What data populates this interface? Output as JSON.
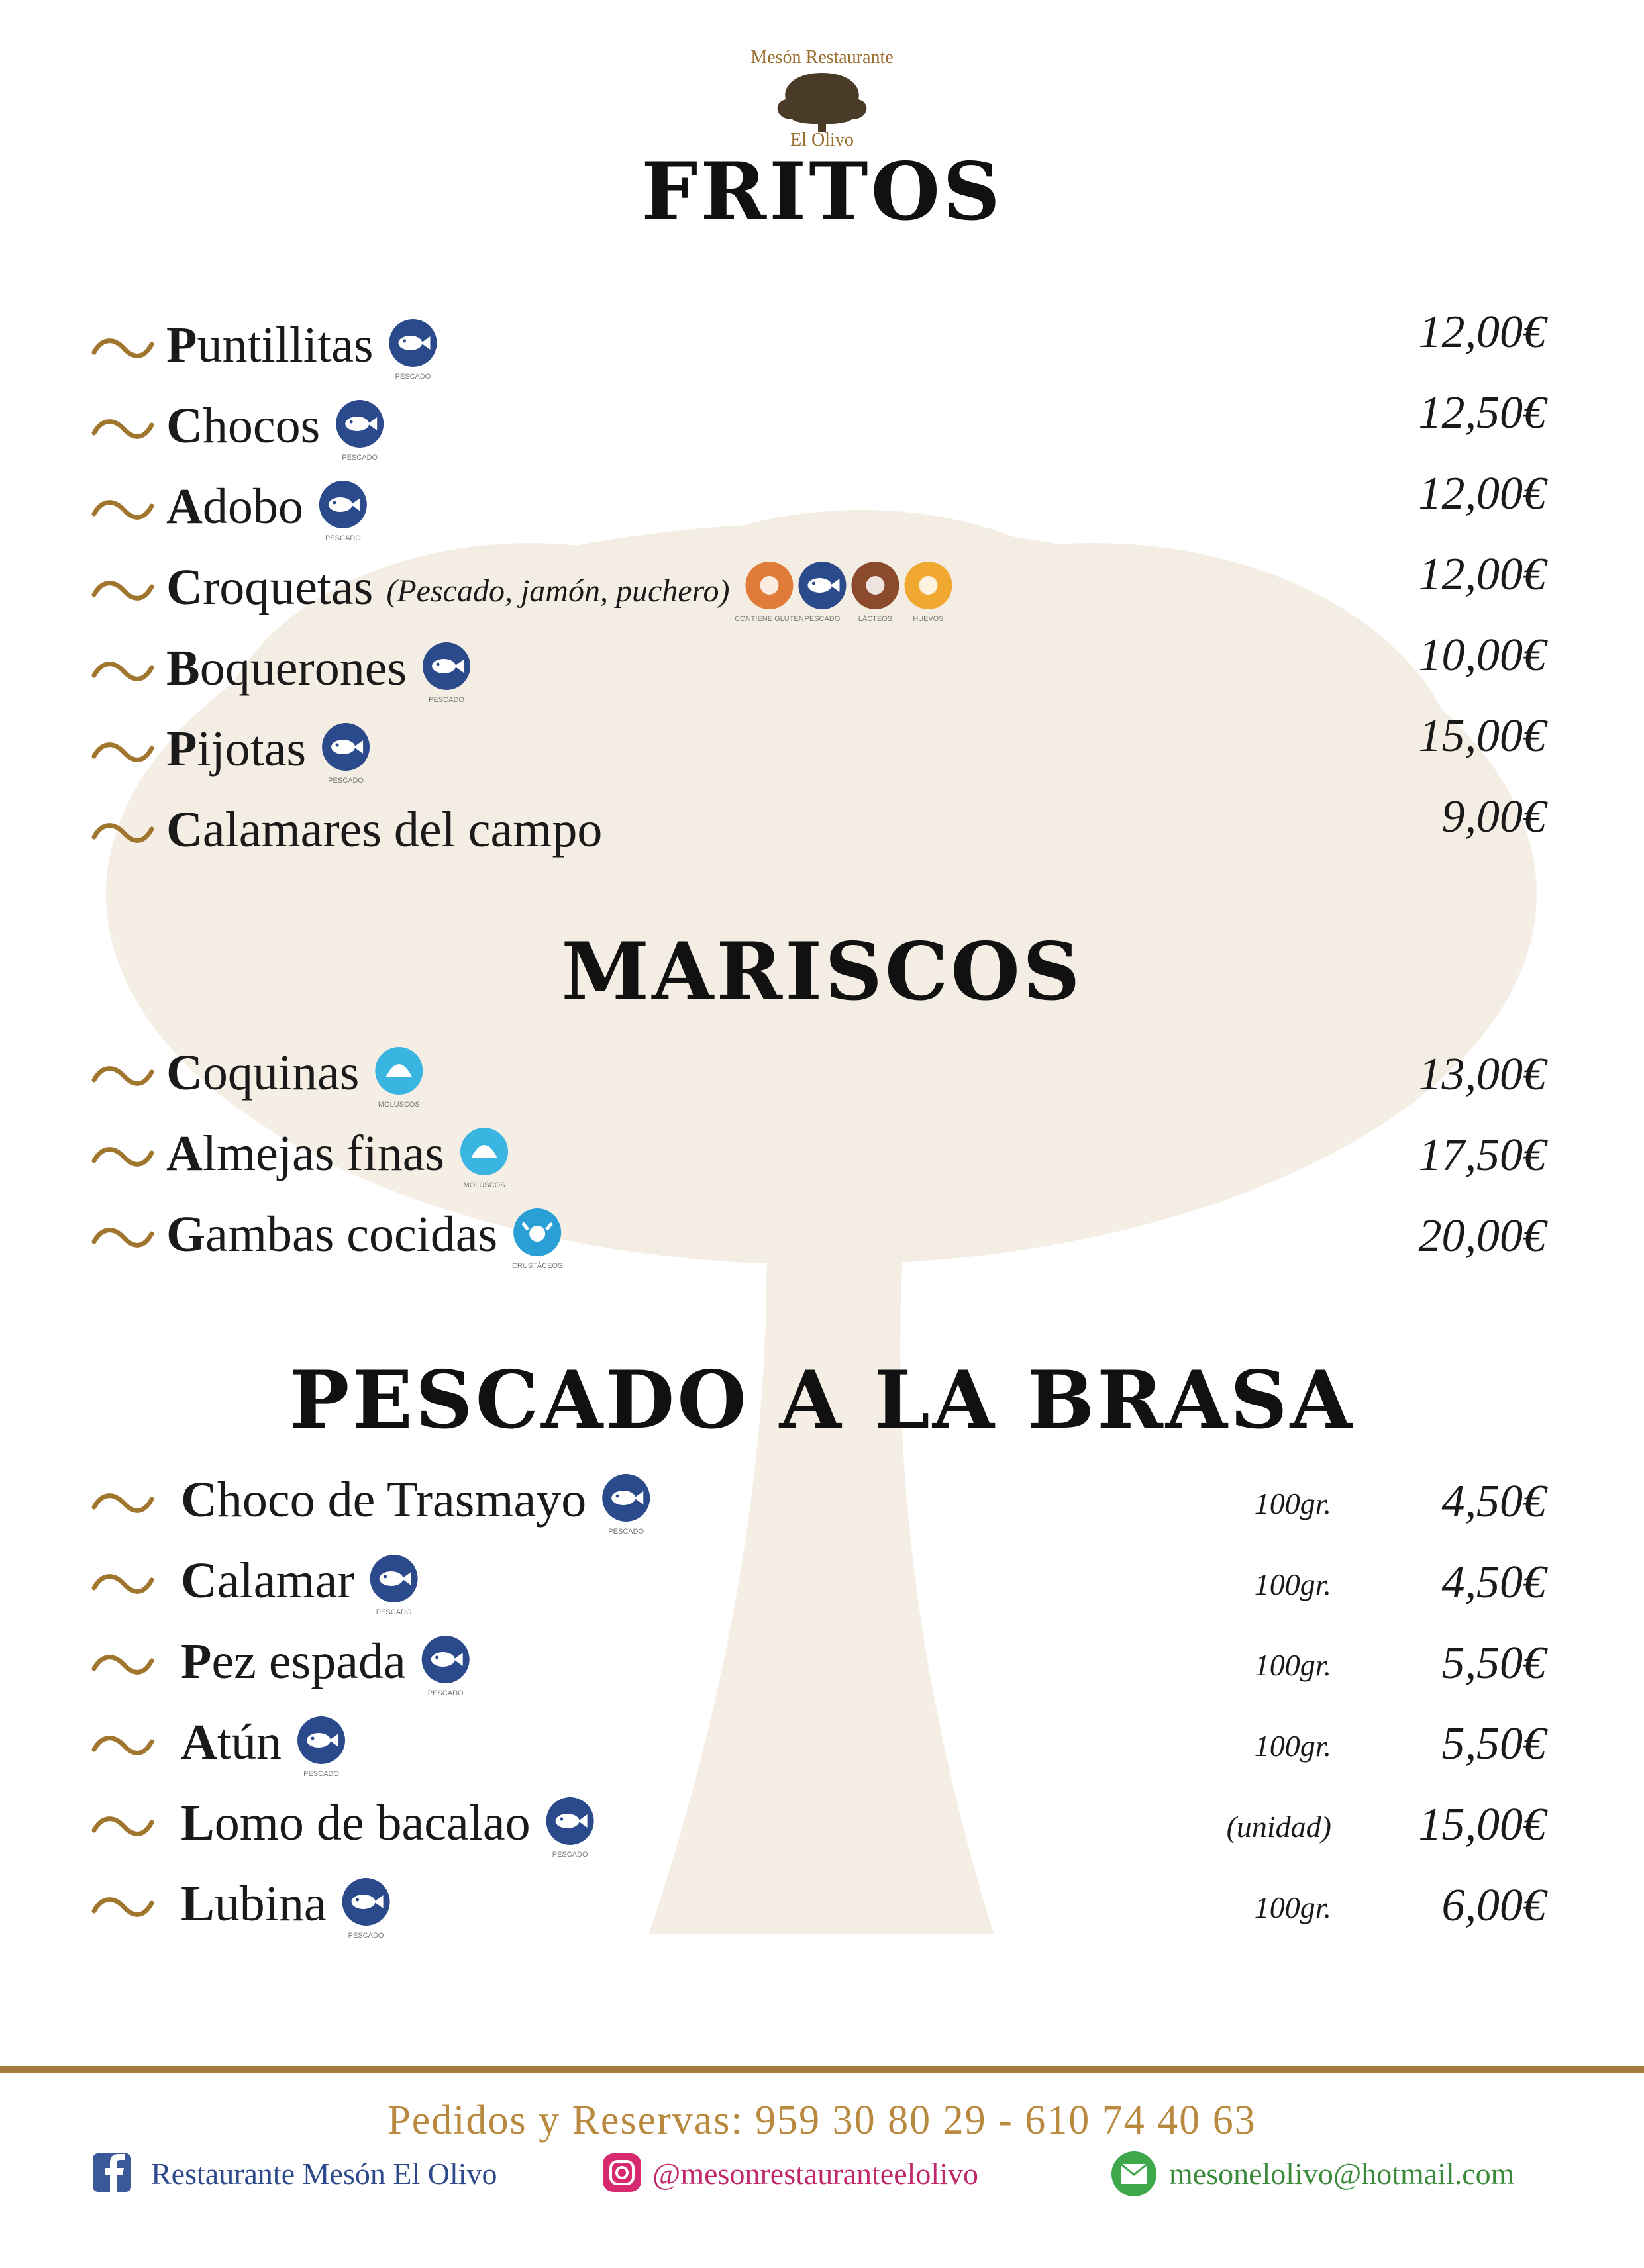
{
  "logo": {
    "arc": "Mesón Restaurante",
    "name": "El Olivo"
  },
  "sections": [
    {
      "title": "FRITOS",
      "items": [
        {
          "initial": "P",
          "rest": "untillitas",
          "allergens": [
            "PESCADO"
          ],
          "price": "12,00€"
        },
        {
          "initial": "C",
          "rest": "hocos",
          "allergens": [
            "PESCADO"
          ],
          "price": "12,50€"
        },
        {
          "initial": "A",
          "rest": "dobo",
          "allergens": [
            "PESCADO"
          ],
          "price": "12,00€"
        },
        {
          "initial": "C",
          "rest": "roquetas",
          "note": "(Pescado, jamón, puchero)",
          "allergens": [
            "CONTIENE GLUTEN",
            "PESCADO",
            "LÁCTEOS",
            "HUEVOS"
          ],
          "price": "12,00€"
        },
        {
          "initial": "B",
          "rest": "oquerones",
          "allergens": [
            "PESCADO"
          ],
          "price": "10,00€"
        },
        {
          "initial": "P",
          "rest": "ijotas",
          "allergens": [
            "PESCADO"
          ],
          "price": "15,00€"
        },
        {
          "initial": "C",
          "rest": "alamares del campo",
          "price": "9,00€"
        }
      ]
    },
    {
      "title": "MARISCOS",
      "items": [
        {
          "initial": "C",
          "rest": "oquinas",
          "allergens": [
            "MOLUSCOS"
          ],
          "price": "13,00€"
        },
        {
          "initial": "A",
          "rest": "lmejas finas",
          "allergens": [
            "MOLUSCOS"
          ],
          "price": "17,50€"
        },
        {
          "initial": "G",
          "rest": "ambas cocidas",
          "allergens": [
            "CRUSTÁCEOS"
          ],
          "price": "20,00€"
        }
      ]
    },
    {
      "title": "PESCADO A LA BRASA",
      "items": [
        {
          "initial": "C",
          "rest": "hoco de Trasmayo",
          "allergens": [
            "PESCADO"
          ],
          "unit": "100gr.",
          "price": "4,50€"
        },
        {
          "initial": "C",
          "rest": "alamar",
          "allergens": [
            "PESCADO"
          ],
          "unit": "100gr.",
          "price": "4,50€"
        },
        {
          "initial": "P",
          "rest": "ez espada",
          "allergens": [
            "PESCADO"
          ],
          "unit": "100gr.",
          "price": "5,50€"
        },
        {
          "initial": "A",
          "rest": "tún",
          "allergens": [
            "PESCADO"
          ],
          "unit": "100gr.",
          "price": "5,50€"
        },
        {
          "initial": "L",
          "rest": "omo de bacalao",
          "allergens": [
            "PESCADO"
          ],
          "unit": "(unidad)",
          "price": "15,00€"
        },
        {
          "initial": "L",
          "rest": "ubina",
          "allergens": [
            "PESCADO"
          ],
          "unit": "100gr.",
          "price": "6,00€"
        }
      ]
    }
  ],
  "footer": {
    "orders": "Pedidos y Reservas: 959 30 80 29 - 610 74 40 63",
    "facebook": "Restaurante Mesón El Olivo",
    "instagram": "@mesonrestauranteelolivo",
    "email": "mesonelolivo@hotmail.com"
  }
}
